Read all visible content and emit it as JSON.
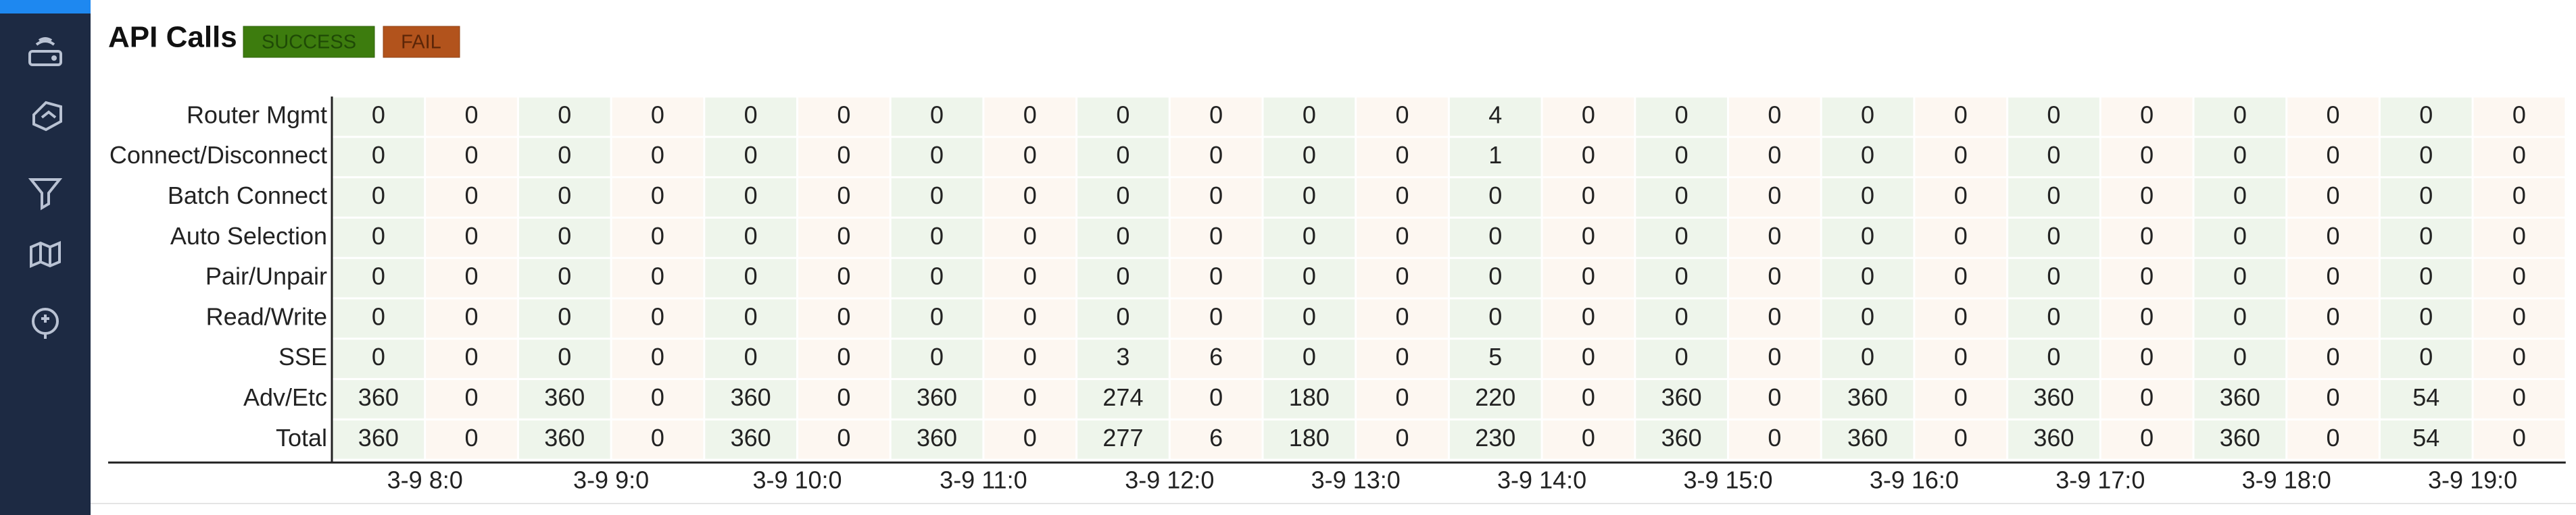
{
  "header": {
    "title": "API Calls",
    "legend": [
      "SUCCESS",
      "FAIL"
    ]
  },
  "table": {
    "columns": [
      "3-9 8:0",
      "3-9 9:0",
      "3-9 10:0",
      "3-9 11:0",
      "3-9 12:0",
      "3-9 13:0",
      "3-9 14:0",
      "3-9 15:0",
      "3-9 16:0",
      "3-9 17:0",
      "3-9 18:0",
      "3-9 19:0"
    ],
    "rows": [
      {
        "label": "Router Mgmt",
        "cells": [
          [
            0,
            0
          ],
          [
            0,
            0
          ],
          [
            0,
            0
          ],
          [
            0,
            0
          ],
          [
            0,
            0
          ],
          [
            0,
            0
          ],
          [
            4,
            0
          ],
          [
            0,
            0
          ],
          [
            0,
            0
          ],
          [
            0,
            0
          ],
          [
            0,
            0
          ],
          [
            0,
            0
          ]
        ]
      },
      {
        "label": "Connect/Disconnect",
        "cells": [
          [
            0,
            0
          ],
          [
            0,
            0
          ],
          [
            0,
            0
          ],
          [
            0,
            0
          ],
          [
            0,
            0
          ],
          [
            0,
            0
          ],
          [
            1,
            0
          ],
          [
            0,
            0
          ],
          [
            0,
            0
          ],
          [
            0,
            0
          ],
          [
            0,
            0
          ],
          [
            0,
            0
          ]
        ]
      },
      {
        "label": "Batch Connect",
        "cells": [
          [
            0,
            0
          ],
          [
            0,
            0
          ],
          [
            0,
            0
          ],
          [
            0,
            0
          ],
          [
            0,
            0
          ],
          [
            0,
            0
          ],
          [
            0,
            0
          ],
          [
            0,
            0
          ],
          [
            0,
            0
          ],
          [
            0,
            0
          ],
          [
            0,
            0
          ],
          [
            0,
            0
          ]
        ]
      },
      {
        "label": "Auto Selection",
        "cells": [
          [
            0,
            0
          ],
          [
            0,
            0
          ],
          [
            0,
            0
          ],
          [
            0,
            0
          ],
          [
            0,
            0
          ],
          [
            0,
            0
          ],
          [
            0,
            0
          ],
          [
            0,
            0
          ],
          [
            0,
            0
          ],
          [
            0,
            0
          ],
          [
            0,
            0
          ],
          [
            0,
            0
          ]
        ]
      },
      {
        "label": "Pair/Unpair",
        "cells": [
          [
            0,
            0
          ],
          [
            0,
            0
          ],
          [
            0,
            0
          ],
          [
            0,
            0
          ],
          [
            0,
            0
          ],
          [
            0,
            0
          ],
          [
            0,
            0
          ],
          [
            0,
            0
          ],
          [
            0,
            0
          ],
          [
            0,
            0
          ],
          [
            0,
            0
          ],
          [
            0,
            0
          ]
        ]
      },
      {
        "label": "Read/Write",
        "cells": [
          [
            0,
            0
          ],
          [
            0,
            0
          ],
          [
            0,
            0
          ],
          [
            0,
            0
          ],
          [
            0,
            0
          ],
          [
            0,
            0
          ],
          [
            0,
            0
          ],
          [
            0,
            0
          ],
          [
            0,
            0
          ],
          [
            0,
            0
          ],
          [
            0,
            0
          ],
          [
            0,
            0
          ]
        ]
      },
      {
        "label": "SSE",
        "cells": [
          [
            0,
            0
          ],
          [
            0,
            0
          ],
          [
            0,
            0
          ],
          [
            0,
            0
          ],
          [
            3,
            6
          ],
          [
            0,
            0
          ],
          [
            5,
            0
          ],
          [
            0,
            0
          ],
          [
            0,
            0
          ],
          [
            0,
            0
          ],
          [
            0,
            0
          ],
          [
            0,
            0
          ]
        ]
      },
      {
        "label": "Adv/Etc",
        "cells": [
          [
            360,
            0
          ],
          [
            360,
            0
          ],
          [
            360,
            0
          ],
          [
            360,
            0
          ],
          [
            274,
            0
          ],
          [
            180,
            0
          ],
          [
            220,
            0
          ],
          [
            360,
            0
          ],
          [
            360,
            0
          ],
          [
            360,
            0
          ],
          [
            360,
            0
          ],
          [
            54,
            0
          ]
        ]
      },
      {
        "label": "Total",
        "cells": [
          [
            360,
            0
          ],
          [
            360,
            0
          ],
          [
            360,
            0
          ],
          [
            360,
            0
          ],
          [
            277,
            6
          ],
          [
            180,
            0
          ],
          [
            230,
            0
          ],
          [
            360,
            0
          ],
          [
            360,
            0
          ],
          [
            360,
            0
          ],
          [
            360,
            0
          ],
          [
            54,
            0
          ]
        ]
      }
    ]
  }
}
